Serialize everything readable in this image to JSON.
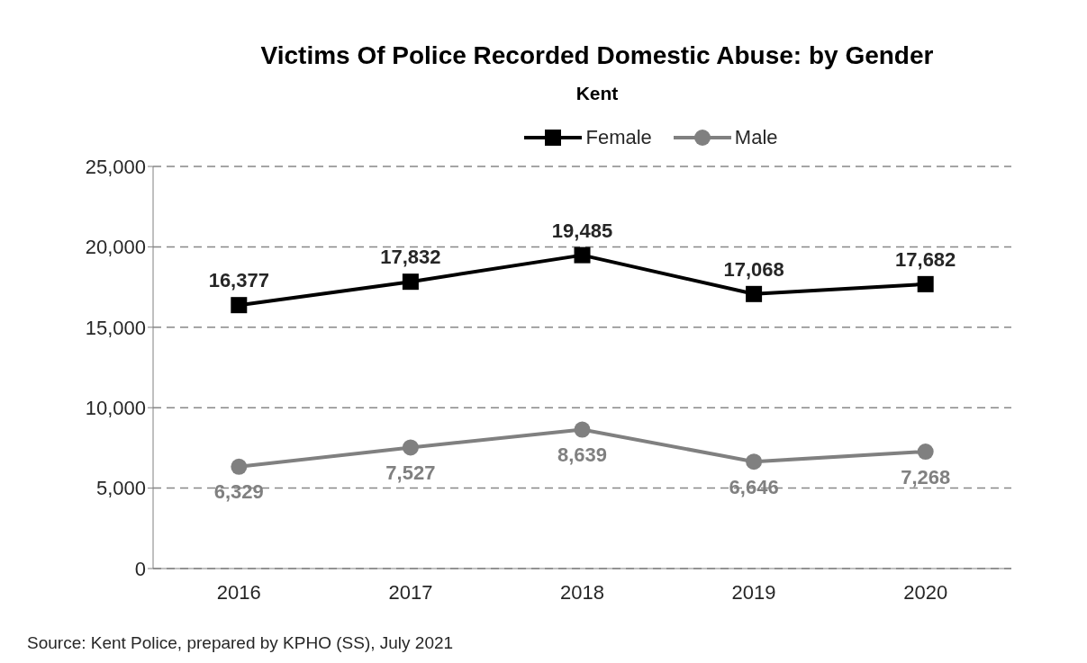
{
  "chart_data": {
    "type": "line",
    "title": "Victims Of Police Recorded Domestic Abuse: by Gender",
    "subtitle": "Kent",
    "categories": [
      "2016",
      "2017",
      "2018",
      "2019",
      "2020"
    ],
    "series": [
      {
        "name": "Female",
        "color": "#000000",
        "marker": "square",
        "values": [
          16377,
          17832,
          19485,
          17068,
          17682
        ],
        "value_labels": [
          "16,377",
          "17,832",
          "19,485",
          "17,068",
          "17,682"
        ]
      },
      {
        "name": "Male",
        "color": "#808080",
        "marker": "circle",
        "values": [
          6329,
          7527,
          8639,
          6646,
          7268
        ],
        "value_labels": [
          "6,329",
          "7,527",
          "8,639",
          "6,646",
          "7,268"
        ]
      }
    ],
    "ylim": [
      0,
      25000
    ],
    "yticks": [
      0,
      {
        "value": 5000,
        "label": "5,000"
      },
      {
        "value": 10000,
        "label": "10,000"
      },
      {
        "value": 15000,
        "label": "15,000"
      },
      {
        "value": 20000,
        "label": "20,000"
      },
      {
        "value": 25000,
        "label": "25,000"
      }
    ],
    "grid": "y",
    "legend": "top",
    "line_style": "solid",
    "annotations": [
      "Source: Kent Police, prepared by KPHO (SS), July 2021"
    ]
  }
}
